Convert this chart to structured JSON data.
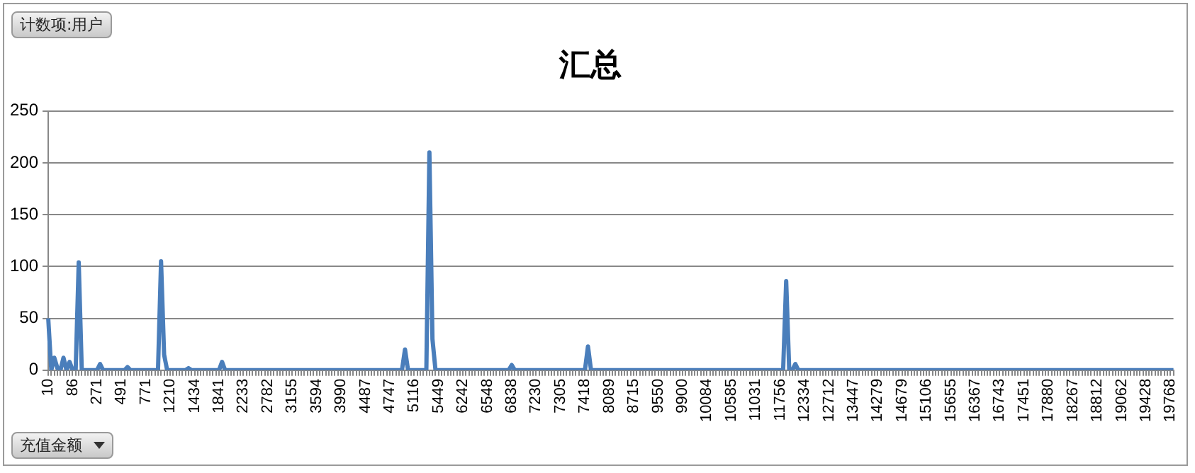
{
  "chart_data": {
    "type": "line",
    "title": "汇总",
    "ylabel": "计数项:用户",
    "xlabel": "充值金额",
    "categories": [
      "10",
      null,
      null,
      null,
      null,
      null,
      null,
      null,
      "86",
      null,
      null,
      null,
      null,
      null,
      null,
      null,
      "271",
      null,
      null,
      null,
      null,
      null,
      null,
      null,
      "491",
      null,
      null,
      null,
      null,
      null,
      null,
      null,
      "771",
      null,
      null,
      null,
      null,
      null,
      null,
      null,
      "1210",
      null,
      null,
      null,
      null,
      null,
      null,
      null,
      "1434",
      null,
      null,
      null,
      null,
      null,
      null,
      null,
      "1841",
      null,
      null,
      null,
      null,
      null,
      null,
      null,
      "2233",
      null,
      null,
      null,
      null,
      null,
      null,
      null,
      "2782",
      null,
      null,
      null,
      null,
      null,
      null,
      null,
      "3155",
      null,
      null,
      null,
      null,
      null,
      null,
      null,
      "3594",
      null,
      null,
      null,
      null,
      null,
      null,
      null,
      "3990",
      null,
      null,
      null,
      null,
      null,
      null,
      null,
      "4487",
      null,
      null,
      null,
      null,
      null,
      null,
      null,
      "4747",
      null,
      null,
      null,
      null,
      null,
      null,
      null,
      "5116",
      null,
      null,
      null,
      null,
      null,
      null,
      null,
      "5449",
      null,
      null,
      null,
      null,
      null,
      null,
      null,
      "6242",
      null,
      null,
      null,
      null,
      null,
      null,
      null,
      "6548",
      null,
      null,
      null,
      null,
      null,
      null,
      null,
      "6838",
      null,
      null,
      null,
      null,
      null,
      null,
      null,
      "7230",
      null,
      null,
      null,
      null,
      null,
      null,
      null,
      "7305",
      null,
      null,
      null,
      null,
      null,
      null,
      null,
      "7418",
      null,
      null,
      null,
      null,
      null,
      null,
      null,
      "8089",
      null,
      null,
      null,
      null,
      null,
      null,
      null,
      "8715",
      null,
      null,
      null,
      null,
      null,
      null,
      null,
      "9550",
      null,
      null,
      null,
      null,
      null,
      null,
      null,
      "9900",
      null,
      null,
      null,
      null,
      null,
      null,
      null,
      "10084",
      null,
      null,
      null,
      null,
      null,
      null,
      null,
      "10585",
      null,
      null,
      null,
      null,
      null,
      null,
      null,
      "11031",
      null,
      null,
      null,
      null,
      null,
      null,
      null,
      "11756",
      null,
      null,
      null,
      null,
      null,
      null,
      null,
      "12334",
      null,
      null,
      null,
      null,
      null,
      null,
      null,
      "12712",
      null,
      null,
      null,
      null,
      null,
      null,
      null,
      "13447",
      null,
      null,
      null,
      null,
      null,
      null,
      null,
      "14279",
      null,
      null,
      null,
      null,
      null,
      null,
      null,
      "14679",
      null,
      null,
      null,
      null,
      null,
      null,
      null,
      "15106",
      null,
      null,
      null,
      null,
      null,
      null,
      null,
      "15655",
      null,
      null,
      null,
      null,
      null,
      null,
      null,
      "16367",
      null,
      null,
      null,
      null,
      null,
      null,
      null,
      "16743",
      null,
      null,
      null,
      null,
      null,
      null,
      null,
      "17451",
      null,
      null,
      null,
      null,
      null,
      null,
      null,
      "17880",
      null,
      null,
      null,
      null,
      null,
      null,
      null,
      "18267",
      null,
      null,
      null,
      null,
      null,
      null,
      null,
      "18812",
      null,
      null,
      null,
      null,
      null,
      null,
      null,
      "19062",
      null,
      null,
      null,
      null,
      null,
      null,
      null,
      "19428",
      null,
      null,
      null,
      null,
      null,
      null,
      null,
      "19768",
      null
    ],
    "values": [
      50,
      0,
      12,
      2,
      0,
      12,
      0,
      8,
      0,
      0,
      104,
      0,
      0,
      0,
      0,
      0,
      0,
      6,
      0,
      0,
      0,
      0,
      0,
      0,
      0,
      0,
      3,
      0,
      0,
      0,
      0,
      0,
      0,
      0,
      0,
      0,
      0,
      105,
      15,
      0,
      0,
      0,
      0,
      0,
      0,
      0,
      2,
      0,
      0,
      0,
      0,
      0,
      0,
      0,
      0,
      0,
      0,
      8,
      0,
      0,
      0,
      0,
      0,
      0,
      0,
      0,
      0,
      0,
      0,
      0,
      0,
      0,
      0,
      0,
      0,
      0,
      0,
      0,
      0,
      0,
      0,
      0,
      0,
      0,
      0,
      0,
      0,
      0,
      0,
      0,
      0,
      0,
      0,
      0,
      0,
      0,
      0,
      0,
      0,
      0,
      0,
      0,
      0,
      0,
      0,
      0,
      0,
      0,
      0,
      0,
      0,
      0,
      0,
      0,
      0,
      0,
      0,
      20,
      0,
      0,
      0,
      0,
      0,
      0,
      0,
      210,
      30,
      0,
      0,
      0,
      0,
      0,
      0,
      0,
      0,
      0,
      0,
      0,
      0,
      0,
      0,
      0,
      0,
      0,
      0,
      0,
      0,
      0,
      0,
      0,
      0,
      0,
      5,
      0,
      0,
      0,
      0,
      0,
      0,
      0,
      0,
      0,
      0,
      0,
      0,
      0,
      0,
      0,
      0,
      0,
      0,
      0,
      0,
      0,
      0,
      0,
      0,
      23,
      0,
      0,
      0,
      0,
      0,
      0,
      0,
      0,
      0,
      0,
      0,
      0,
      0,
      0,
      0,
      0,
      0,
      0,
      0,
      0,
      0,
      0,
      0,
      0,
      0,
      0,
      0,
      0,
      0,
      0,
      0,
      0,
      0,
      0,
      0,
      0,
      0,
      0,
      0,
      0,
      0,
      0,
      0,
      0,
      0,
      0,
      0,
      0,
      0,
      0,
      0,
      0,
      0,
      0,
      0,
      0,
      0,
      0,
      0,
      0,
      0,
      0,
      0,
      0,
      86,
      0,
      0,
      6,
      0,
      0,
      0,
      0,
      0,
      0,
      0,
      0,
      0,
      0,
      0,
      0,
      0,
      0,
      0,
      0,
      0,
      0,
      0,
      0,
      0,
      0,
      0,
      0,
      0,
      0,
      0,
      0,
      0,
      0,
      0,
      0,
      0,
      0,
      0,
      0,
      0,
      0,
      0,
      0,
      0,
      0,
      0,
      0,
      0,
      0,
      0,
      0,
      0,
      0,
      0,
      0,
      0,
      0,
      0,
      0,
      0,
      0,
      0,
      0,
      0,
      0,
      0,
      0,
      0,
      0,
      0,
      0,
      0,
      0,
      0,
      0,
      0,
      0,
      0,
      0,
      0,
      0,
      0,
      0,
      0,
      0,
      0,
      0,
      0,
      0,
      0,
      0,
      0,
      0,
      0,
      0,
      0,
      0,
      0,
      0,
      0,
      0,
      0,
      0,
      0,
      0,
      0,
      0,
      0,
      0,
      0,
      0,
      0,
      0,
      0,
      0,
      0,
      0,
      0,
      0,
      0,
      0,
      0,
      0,
      0,
      0,
      0,
      0
    ],
    "color": "#4a7ebb",
    "ylim": [
      0,
      250
    ],
    "yticks": [
      0,
      50,
      100,
      150,
      200,
      250
    ],
    "grid": "y",
    "legend": false,
    "marker": "none",
    "line_style": "solid"
  }
}
